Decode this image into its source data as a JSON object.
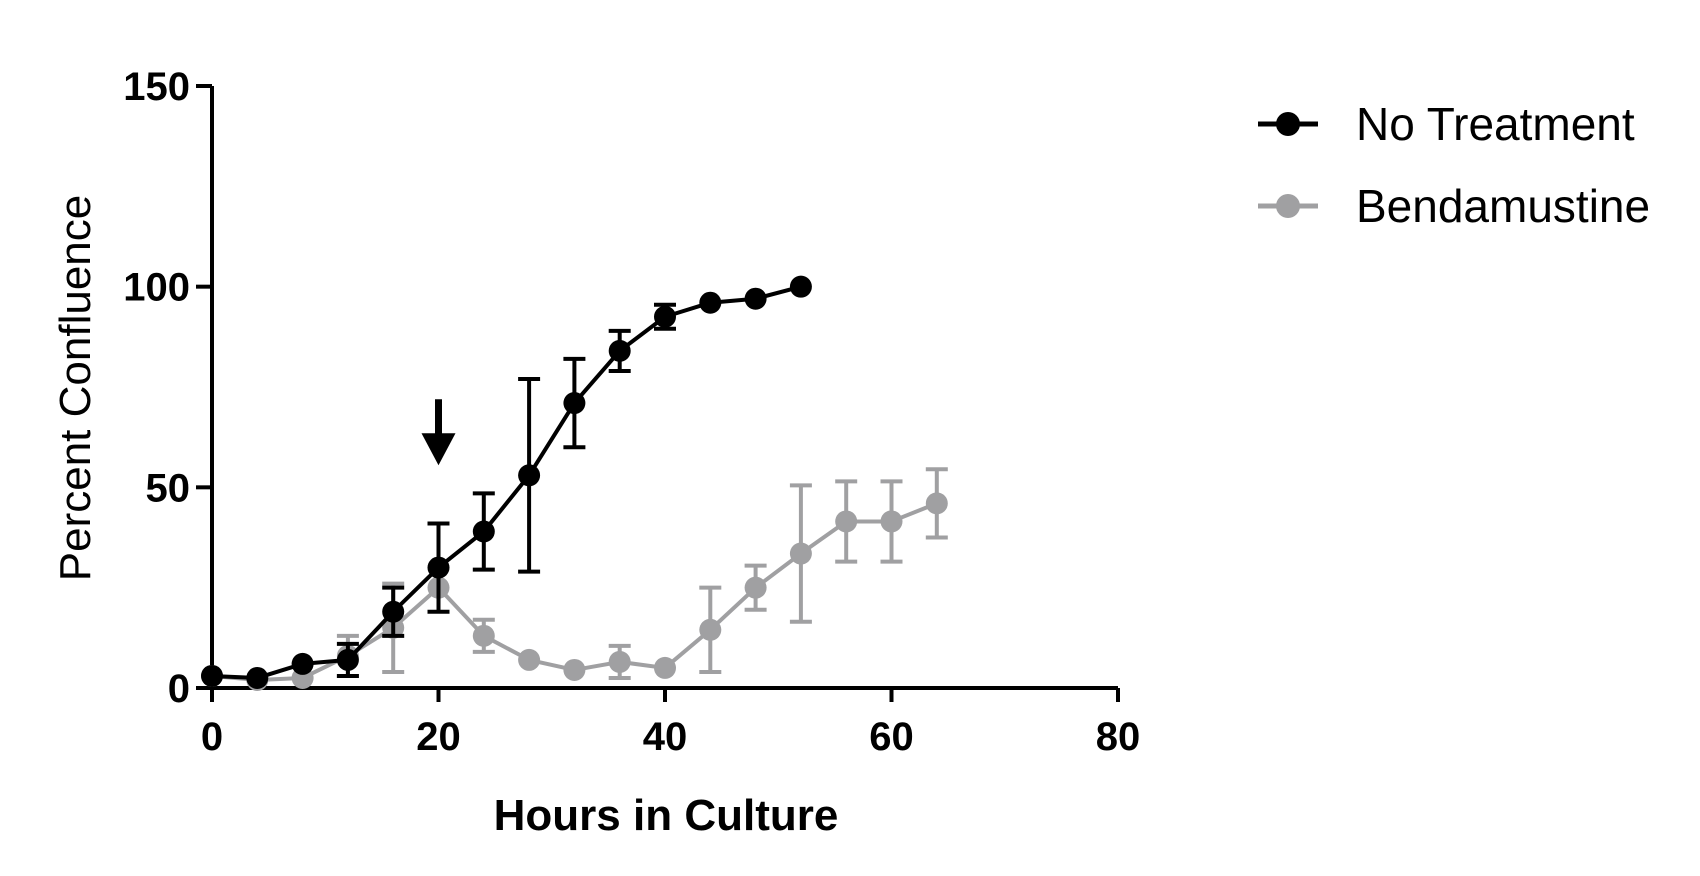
{
  "chart_data": {
    "type": "line",
    "xlabel": "Hours in Culture",
    "ylabel": "Percent Confluence",
    "xlim": [
      0,
      80
    ],
    "ylim": [
      0,
      150
    ],
    "x_ticks": [
      "0",
      "20",
      "40",
      "60",
      "80"
    ],
    "y_ticks": [
      "0",
      "50",
      "100",
      "150"
    ],
    "grid": false,
    "legend_position": "top-right",
    "series": [
      {
        "name": "No Treatment",
        "color": "#000000",
        "x": [
          0,
          4,
          8,
          12,
          16,
          20,
          24,
          28,
          32,
          36,
          40,
          44,
          48,
          52
        ],
        "y": [
          3,
          2.5,
          6,
          7,
          19,
          30,
          39,
          53,
          71,
          84,
          92.5,
          96,
          97,
          100
        ],
        "error": [
          0,
          0,
          0,
          4,
          6,
          11,
          9.5,
          24,
          11,
          5,
          3,
          0,
          0,
          0
        ]
      },
      {
        "name": "Bendamustine",
        "color": "#a0a0a2",
        "x": [
          0,
          4,
          8,
          12,
          16,
          20,
          24,
          28,
          32,
          36,
          40,
          44,
          48,
          52,
          56,
          60,
          64
        ],
        "y": [
          3,
          2,
          2.5,
          8,
          15,
          25,
          13,
          7,
          4.5,
          6.5,
          5,
          14.5,
          25,
          33.5,
          41.5,
          41.5,
          46
        ],
        "error": [
          0,
          0,
          0,
          5,
          11,
          0,
          4,
          0,
          0,
          4,
          0,
          10.5,
          5.5,
          17,
          10,
          10,
          8.5
        ]
      }
    ],
    "annotations": [
      {
        "type": "arrow-down",
        "x": 20,
        "y": 57
      }
    ]
  }
}
